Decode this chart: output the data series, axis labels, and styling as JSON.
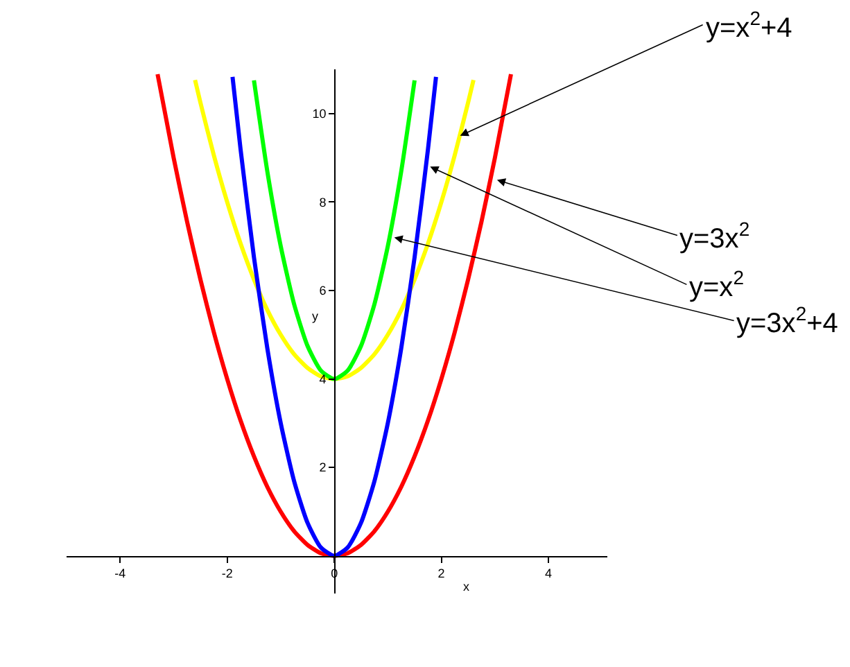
{
  "chart_data": {
    "type": "line",
    "xlabel": "x",
    "ylabel": "y",
    "xlim": [
      -5,
      5.1
    ],
    "ylim": [
      -0.85,
      11
    ],
    "xticks": [
      -4,
      -2,
      0,
      2,
      4
    ],
    "yticks": [
      2,
      4,
      6,
      8,
      10
    ],
    "marker": "none",
    "line_style": "solid",
    "series": [
      {
        "color": "#ff0000",
        "x": [
          -3.3,
          -3,
          -2.75,
          -2.5,
          -2.25,
          -2,
          -1.75,
          -1.5,
          -1.25,
          -1,
          -0.75,
          -0.5,
          -0.25,
          0,
          0.25,
          0.5,
          0.75,
          1,
          1.25,
          1.5,
          1.75,
          2,
          2.25,
          2.5,
          2.75,
          3,
          3.3
        ],
        "values": [
          10.89,
          9,
          7.56,
          6.25,
          5.06,
          4,
          3.06,
          2.25,
          1.56,
          1,
          0.56,
          0.25,
          0.06,
          0,
          0.06,
          0.25,
          0.56,
          1,
          1.56,
          2.25,
          3.06,
          4,
          5.06,
          6.25,
          7.56,
          9,
          10.89
        ]
      },
      {
        "color": "#ffff00",
        "x": [
          -2.6,
          -2.5,
          -2.25,
          -2,
          -1.75,
          -1.5,
          -1.25,
          -1,
          -0.75,
          -0.5,
          -0.25,
          0,
          0.25,
          0.5,
          0.75,
          1,
          1.25,
          1.5,
          1.75,
          2,
          2.25,
          2.5,
          2.6
        ],
        "values": [
          10.76,
          10.25,
          9.06,
          8,
          7.06,
          6.25,
          5.56,
          5,
          4.56,
          4.25,
          4.06,
          4,
          4.06,
          4.25,
          4.56,
          5,
          5.56,
          6.25,
          7.06,
          8,
          9.06,
          10.25,
          10.76
        ]
      },
      {
        "color": "#0000ff",
        "x": [
          -1.9,
          -1.75,
          -1.5,
          -1.25,
          -1,
          -0.75,
          -0.5,
          -0.25,
          0,
          0.25,
          0.5,
          0.75,
          1,
          1.25,
          1.5,
          1.75,
          1.9
        ],
        "values": [
          10.83,
          9.19,
          6.75,
          4.69,
          3,
          1.69,
          0.75,
          0.19,
          0,
          0.19,
          0.75,
          1.69,
          3,
          4.69,
          6.75,
          9.19,
          10.83
        ]
      },
      {
        "color": "#00ff00",
        "x": [
          -1.5,
          -1.25,
          -1,
          -0.75,
          -0.5,
          -0.25,
          0,
          0.25,
          0.5,
          0.75,
          1,
          1.25,
          1.5
        ],
        "values": [
          10.75,
          8.69,
          7,
          5.69,
          4.75,
          4.19,
          4,
          4.19,
          4.75,
          5.69,
          7,
          8.69,
          10.75
        ]
      }
    ],
    "annotations": [
      {
        "text": "y=x$^{2}$+4",
        "x": 2.35,
        "y": 9.5
      },
      {
        "text": "y=3x$^{2}$",
        "x": 3.04,
        "y": 8.5
      },
      {
        "text": "y=x$^{2}$",
        "x": 1.79,
        "y": 8.8
      },
      {
        "text": "y=3x$^{2}$+4",
        "x": 1.12,
        "y": 7.2
      }
    ]
  }
}
